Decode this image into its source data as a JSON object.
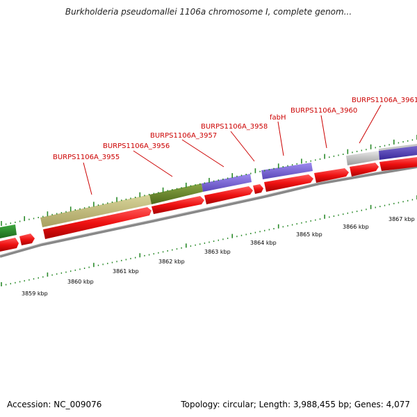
{
  "title": "Burkholderia pseudomallei 1106a chromosome I, complete genom...",
  "footer": {
    "accession": "Accession: NC_009076",
    "summary": "Topology: circular; Length: 3,988,455 bp; Genes: 4,077"
  },
  "colors": {
    "gene_label": "#cc0000",
    "cds": "#ee1111",
    "tick": "#2a8a2a",
    "backbone": "#888888"
  },
  "gene_labels": [
    {
      "id": "3955",
      "text": "BURPS1106A_3955"
    },
    {
      "id": "3956",
      "text": "BURPS1106A_3956"
    },
    {
      "id": "3957",
      "text": "BURPS1106A_3957"
    },
    {
      "id": "3958",
      "text": "BURPS1106A_3958"
    },
    {
      "id": "fabh",
      "text": "fabH"
    },
    {
      "id": "3960",
      "text": "BURPS1106A_3960"
    },
    {
      "id": "3961",
      "text": "BURPS1106A_3961"
    }
  ],
  "scale_labels": [
    {
      "id": "3859",
      "text": "3859 kbp"
    },
    {
      "id": "3860",
      "text": "3860 kbp"
    },
    {
      "id": "3861",
      "text": "3861 kbp"
    },
    {
      "id": "3862",
      "text": "3862 kbp"
    },
    {
      "id": "3863",
      "text": "3863 kbp"
    },
    {
      "id": "3864",
      "text": "3864 kbp"
    },
    {
      "id": "3865",
      "text": "3865 kbp"
    },
    {
      "id": "3866",
      "text": "3866 kbp"
    },
    {
      "id": "3867",
      "text": "3867 kbp"
    }
  ]
}
